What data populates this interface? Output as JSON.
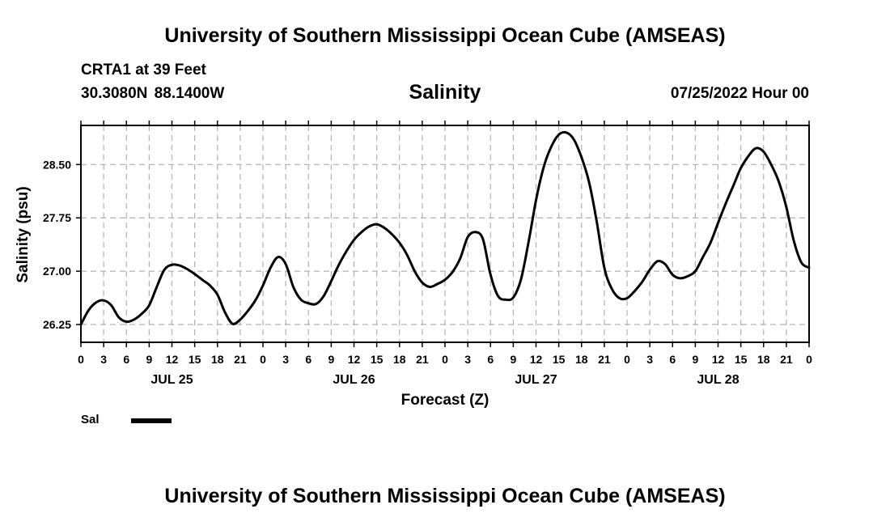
{
  "header": {
    "title": "University of Southern Mississippi Ocean Cube (AMSEAS)",
    "station": "CRTA1 at 39 Feet",
    "coords": "30.3080N  88.1400W",
    "variable": "Salinity",
    "datetime": "07/25/2022 Hour 00"
  },
  "footer": {
    "title": "University of Southern Mississippi Ocean Cube (AMSEAS)"
  },
  "legend": {
    "label": "Sal"
  },
  "chart_data": {
    "type": "line",
    "title": "Salinity",
    "xlabel": "Forecast (Z)",
    "ylabel": "Salinity (psu)",
    "xlim": [
      0,
      96
    ],
    "ylim": [
      26.0,
      29.05
    ],
    "yticks": [
      26.25,
      27.0,
      27.75,
      28.5
    ],
    "ytick_labels": [
      "26.25",
      "27.00",
      "27.75",
      "28.50"
    ],
    "xtick_labels": [
      "0",
      "3",
      "6",
      "9",
      "12",
      "15",
      "18",
      "21",
      "0",
      "3",
      "6",
      "9",
      "12",
      "15",
      "18",
      "21",
      "0",
      "3",
      "6",
      "9",
      "12",
      "15",
      "18",
      "21",
      "0",
      "3",
      "6",
      "9",
      "12",
      "15",
      "18",
      "21",
      "0"
    ],
    "day_labels": [
      {
        "hour": 12,
        "label": "JUL 25"
      },
      {
        "hour": 36,
        "label": "JUL 26"
      },
      {
        "hour": 60,
        "label": "JUL 27"
      },
      {
        "hour": 84,
        "label": "JUL 28"
      }
    ],
    "grid": true,
    "series": [
      {
        "name": "Sal",
        "x": [
          0,
          1,
          2,
          3,
          4,
          5,
          6,
          7,
          8,
          9,
          10,
          11,
          12,
          13,
          14,
          15,
          16,
          17,
          18,
          19,
          20,
          21,
          22,
          23,
          24,
          25,
          26,
          27,
          28,
          29,
          30,
          31,
          32,
          33,
          34,
          35,
          36,
          37,
          38,
          39,
          40,
          41,
          42,
          43,
          44,
          45,
          46,
          47,
          48,
          49,
          50,
          51,
          52,
          53,
          54,
          55,
          56,
          57,
          58,
          59,
          60,
          61,
          62,
          63,
          64,
          65,
          66,
          67,
          68,
          69,
          70,
          71,
          72,
          73,
          74,
          75,
          76,
          77,
          78,
          79,
          80,
          81,
          82,
          83,
          84,
          85,
          86,
          87,
          88,
          89,
          90,
          91,
          92,
          93,
          94,
          95,
          96
        ],
        "values": [
          26.25,
          26.45,
          26.56,
          26.59,
          26.52,
          26.35,
          26.29,
          26.32,
          26.4,
          26.52,
          26.78,
          27.02,
          27.09,
          27.08,
          27.03,
          26.96,
          26.88,
          26.8,
          26.67,
          26.42,
          26.26,
          26.32,
          26.44,
          26.59,
          26.8,
          27.05,
          27.2,
          27.1,
          26.78,
          26.6,
          26.55,
          26.54,
          26.65,
          26.86,
          27.09,
          27.28,
          27.44,
          27.55,
          27.63,
          27.66,
          27.61,
          27.52,
          27.4,
          27.23,
          27.0,
          26.84,
          26.78,
          26.82,
          26.88,
          26.99,
          27.18,
          27.48,
          27.55,
          27.45,
          26.95,
          26.65,
          26.6,
          26.63,
          26.88,
          27.4,
          28.0,
          28.46,
          28.75,
          28.92,
          28.95,
          28.85,
          28.6,
          28.25,
          27.7,
          27.05,
          26.75,
          26.62,
          26.62,
          26.72,
          26.85,
          27.02,
          27.14,
          27.1,
          26.95,
          26.9,
          26.93,
          27.0,
          27.2,
          27.4,
          27.68,
          27.95,
          28.2,
          28.45,
          28.62,
          28.73,
          28.68,
          28.5,
          28.26,
          27.9,
          27.42,
          27.12,
          27.05
        ]
      }
    ]
  }
}
